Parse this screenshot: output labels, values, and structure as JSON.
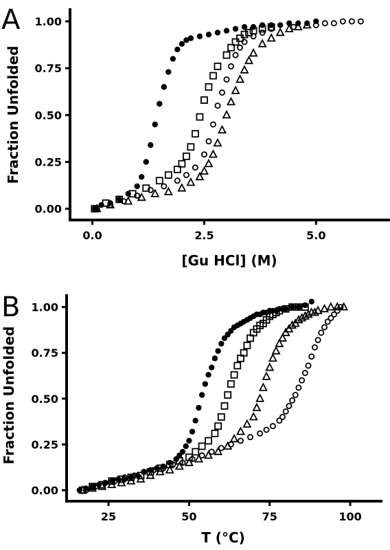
{
  "chart_data": [
    {
      "type": "scatter",
      "panel_label": "A",
      "title": "",
      "xlabel": "[Gu HCl] (M)",
      "ylabel": "Fraction Unfolded",
      "xlim": [
        -0.5,
        6.5
      ],
      "ylim": [
        -0.06,
        1.07
      ],
      "x_ticks": [
        0,
        2.5,
        5
      ],
      "x_tick_labels": [
        "0.0",
        "2.5",
        "5.0"
      ],
      "y_ticks": [
        0,
        0.25,
        0.5,
        0.75,
        1
      ],
      "y_tick_labels": [
        "0.00",
        "0.25",
        "0.50",
        "0.75",
        "1.00"
      ],
      "grid": false,
      "legend": "none",
      "series": [
        {
          "marker": "filled-circle",
          "x": [
            0.05,
            0.2,
            0.4,
            0.6,
            0.8,
            1.0,
            1.1,
            1.2,
            1.3,
            1.4,
            1.5,
            1.6,
            1.7,
            1.8,
            1.9,
            2.0,
            2.1,
            2.2,
            2.4,
            2.6,
            2.8,
            3.0,
            3.2,
            3.4,
            3.6,
            3.8,
            4.0,
            4.2,
            4.4,
            4.6,
            4.8,
            5.0
          ],
          "y": [
            0.0,
            0.02,
            0.03,
            0.05,
            0.08,
            0.12,
            0.17,
            0.25,
            0.34,
            0.45,
            0.56,
            0.65,
            0.73,
            0.8,
            0.85,
            0.88,
            0.9,
            0.91,
            0.92,
            0.93,
            0.94,
            0.95,
            0.96,
            0.97,
            0.97,
            0.98,
            0.98,
            0.98,
            0.99,
            0.99,
            0.99,
            1.0
          ]
        },
        {
          "marker": "open-square",
          "x": [
            0.05,
            0.3,
            0.6,
            0.9,
            1.2,
            1.5,
            1.7,
            1.9,
            2.0,
            2.1,
            2.2,
            2.3,
            2.4,
            2.5,
            2.6,
            2.7,
            2.8,
            3.0,
            3.1,
            3.2,
            3.3,
            3.4,
            3.5,
            3.6,
            3.8,
            4.0
          ],
          "y": [
            0.0,
            0.03,
            0.05,
            0.08,
            0.11,
            0.15,
            0.18,
            0.21,
            0.24,
            0.28,
            0.33,
            0.4,
            0.49,
            0.58,
            0.65,
            0.71,
            0.76,
            0.82,
            0.86,
            0.89,
            0.91,
            0.93,
            0.94,
            0.95,
            0.96,
            0.97
          ]
        },
        {
          "marker": "open-circle",
          "x": [
            0.1,
            0.4,
            0.7,
            1.0,
            1.3,
            1.6,
            1.9,
            2.1,
            2.3,
            2.5,
            2.6,
            2.7,
            2.8,
            2.9,
            3.0,
            3.1,
            3.2,
            3.3,
            3.4,
            3.6,
            3.8,
            4.0,
            4.5,
            5.0,
            5.2,
            5.4,
            5.6,
            5.8,
            6.0
          ],
          "y": [
            0.0,
            0.02,
            0.04,
            0.07,
            0.1,
            0.12,
            0.15,
            0.18,
            0.22,
            0.29,
            0.36,
            0.45,
            0.55,
            0.62,
            0.69,
            0.76,
            0.82,
            0.86,
            0.89,
            0.92,
            0.94,
            0.96,
            0.97,
            0.98,
            0.99,
            0.99,
            1.0,
            1.0,
            1.0
          ]
        },
        {
          "marker": "open-triangle",
          "x": [
            0.1,
            0.4,
            0.8,
            1.1,
            1.4,
            1.7,
            2.0,
            2.2,
            2.4,
            2.5,
            2.6,
            2.7,
            2.8,
            2.9,
            3.0,
            3.1,
            3.2,
            3.3,
            3.4,
            3.5,
            3.6,
            3.8,
            4.0,
            4.2,
            4.4,
            4.6,
            4.8
          ],
          "y": [
            0.0,
            0.02,
            0.04,
            0.06,
            0.08,
            0.09,
            0.11,
            0.14,
            0.17,
            0.2,
            0.24,
            0.29,
            0.35,
            0.42,
            0.5,
            0.57,
            0.63,
            0.69,
            0.74,
            0.79,
            0.83,
            0.88,
            0.91,
            0.94,
            0.96,
            0.97,
            0.98
          ]
        }
      ]
    },
    {
      "type": "scatter",
      "panel_label": "B",
      "title": "",
      "xlabel": "T (°C)",
      "ylabel": "Fraction Unfolded",
      "xlim": [
        12,
        110
      ],
      "ylim": [
        -0.06,
        1.07
      ],
      "x_ticks": [
        25,
        50,
        75,
        100
      ],
      "x_tick_labels": [
        "25",
        "50",
        "75",
        "100"
      ],
      "y_ticks": [
        0,
        0.25,
        0.5,
        0.75,
        1
      ],
      "y_tick_labels": [
        "0.00",
        "0.25",
        "0.50",
        "0.75",
        "1.00"
      ],
      "grid": false,
      "legend": "none",
      "series": [
        {
          "marker": "filled-circle",
          "x": [
            16,
            18,
            20,
            22,
            24,
            26,
            28,
            30,
            32,
            34,
            36,
            38,
            40,
            42,
            44,
            46,
            47,
            48,
            49,
            50,
            51,
            52,
            53,
            54,
            55,
            56,
            57,
            58,
            59,
            60,
            61,
            62,
            63,
            64,
            65,
            66,
            67,
            68,
            69,
            70,
            71,
            72,
            73,
            74,
            75,
            76,
            77,
            78,
            79,
            80,
            82,
            84,
            86,
            88
          ],
          "y": [
            0.0,
            0.01,
            0.02,
            0.03,
            0.04,
            0.05,
            0.06,
            0.06,
            0.07,
            0.08,
            0.1,
            0.11,
            0.12,
            0.13,
            0.15,
            0.17,
            0.19,
            0.21,
            0.24,
            0.27,
            0.32,
            0.38,
            0.45,
            0.52,
            0.58,
            0.63,
            0.67,
            0.72,
            0.76,
            0.8,
            0.83,
            0.85,
            0.87,
            0.89,
            0.9,
            0.91,
            0.92,
            0.93,
            0.94,
            0.95,
            0.96,
            0.96,
            0.97,
            0.97,
            0.98,
            0.98,
            0.98,
            0.99,
            0.99,
            0.99,
            1.0,
            1.0,
            1.01,
            1.03
          ]
        },
        {
          "marker": "open-square",
          "x": [
            17,
            20,
            23,
            26,
            29,
            32,
            35,
            38,
            41,
            44,
            47,
            50,
            52,
            54,
            56,
            58,
            59,
            60,
            61,
            62,
            63,
            64,
            65,
            66,
            67,
            68,
            69,
            70,
            71,
            72,
            73,
            74,
            75,
            76,
            77,
            78,
            80,
            82,
            84,
            86
          ],
          "y": [
            0.0,
            0.02,
            0.03,
            0.05,
            0.06,
            0.07,
            0.08,
            0.1,
            0.12,
            0.14,
            0.16,
            0.18,
            0.21,
            0.24,
            0.27,
            0.31,
            0.35,
            0.4,
            0.46,
            0.52,
            0.58,
            0.63,
            0.68,
            0.72,
            0.75,
            0.79,
            0.83,
            0.86,
            0.88,
            0.9,
            0.91,
            0.93,
            0.95,
            0.96,
            0.97,
            0.98,
            0.99,
            1.0,
            1.0,
            1.0
          ]
        },
        {
          "marker": "open-triangle",
          "x": [
            17,
            20,
            23,
            26,
            29,
            32,
            35,
            38,
            41,
            44,
            47,
            50,
            53,
            56,
            59,
            62,
            64,
            66,
            68,
            70,
            71,
            72,
            73,
            74,
            75,
            76,
            77,
            78,
            79,
            80,
            81,
            82,
            83,
            84,
            85,
            86,
            87,
            88,
            89,
            90,
            92,
            94,
            96,
            98
          ],
          "y": [
            0.0,
            0.01,
            0.02,
            0.03,
            0.04,
            0.05,
            0.06,
            0.08,
            0.1,
            0.11,
            0.13,
            0.15,
            0.17,
            0.19,
            0.21,
            0.24,
            0.28,
            0.32,
            0.36,
            0.4,
            0.45,
            0.5,
            0.56,
            0.62,
            0.67,
            0.72,
            0.76,
            0.8,
            0.83,
            0.86,
            0.88,
            0.9,
            0.91,
            0.93,
            0.94,
            0.95,
            0.96,
            0.97,
            0.97,
            0.98,
            0.99,
            1.0,
            1.0,
            1.0
          ]
        },
        {
          "marker": "open-circle",
          "x": [
            18,
            21,
            24,
            27,
            30,
            33,
            36,
            39,
            42,
            45,
            48,
            51,
            54,
            57,
            60,
            63,
            66,
            69,
            72,
            74,
            76,
            78,
            79,
            80,
            81,
            82,
            83,
            84,
            85,
            86,
            87,
            88,
            89,
            90,
            91,
            92,
            93,
            94,
            95,
            96,
            97
          ],
          "y": [
            0.0,
            0.02,
            0.04,
            0.05,
            0.07,
            0.08,
            0.1,
            0.11,
            0.12,
            0.14,
            0.15,
            0.17,
            0.19,
            0.21,
            0.23,
            0.25,
            0.27,
            0.29,
            0.31,
            0.33,
            0.35,
            0.38,
            0.4,
            0.43,
            0.46,
            0.49,
            0.52,
            0.56,
            0.6,
            0.64,
            0.68,
            0.73,
            0.78,
            0.82,
            0.86,
            0.89,
            0.92,
            0.94,
            0.96,
            0.98,
            1.0
          ]
        }
      ]
    }
  ]
}
